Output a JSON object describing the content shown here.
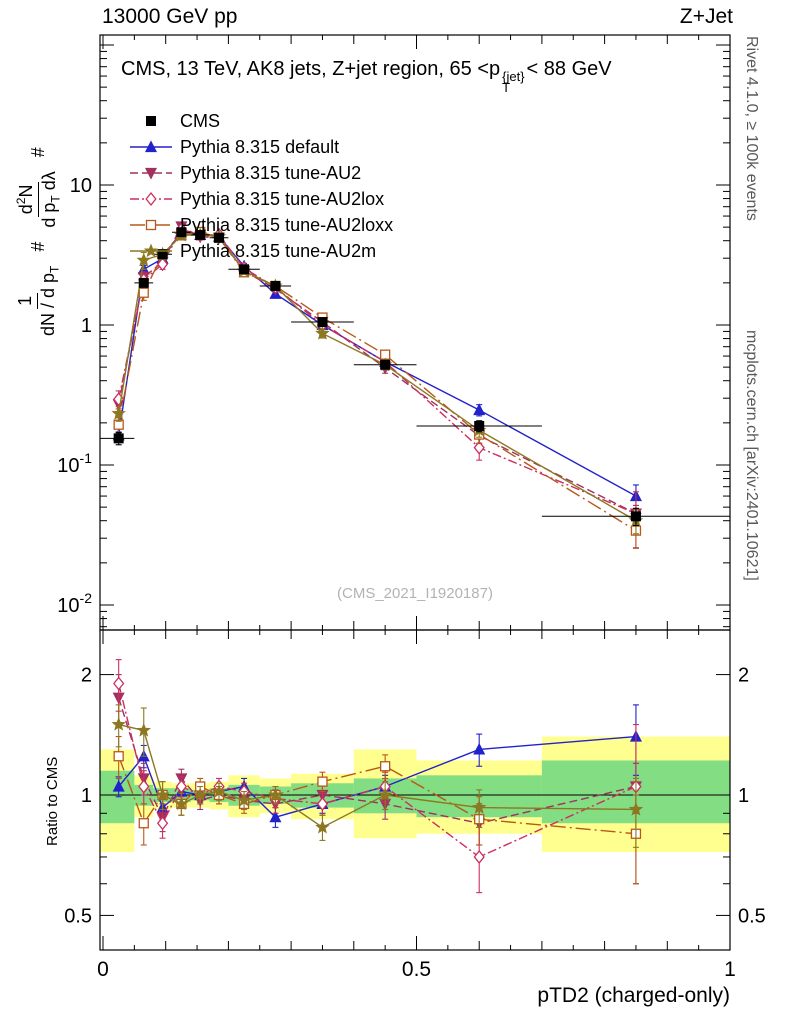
{
  "header": {
    "left": "13000 GeV pp",
    "right": "Z+Jet"
  },
  "title": {
    "pre": "CMS, 13 TeV, AK8 jets, Z+jet region, 65 <p",
    "sup": "{jet}",
    "sub": "T",
    "post": "< 88 GeV"
  },
  "ylabel": {
    "f1_num": "1",
    "f1_den_a": "dN / d p",
    "f1_den_sub": "T",
    "hash1": "#",
    "f2_num_a": "d",
    "f2_num_sup": "2",
    "f2_num_b": "N",
    "f2_den_a": "d p",
    "f2_den_sub": "T",
    "f2_den_b": " dλ",
    "hash2": "#"
  },
  "side_notes": {
    "top_right": "Rivet 4.1.0, ≥ 100k events",
    "bottom_right": "mcplots.cern.ch [arXiv:2401.10621]"
  },
  "chart_data": {
    "type": "line",
    "title_text": "CMS, 13 TeV, AK8 jets, Z+jet region, 65 <pT{jet}< 88 GeV",
    "watermark": "(CMS_2021_I1920187)",
    "xlabel": "pTD2 (charged-only)",
    "x_ticks": [
      0,
      0.5,
      1
    ],
    "x_tick_labels": [
      "0",
      "0.5",
      "1"
    ],
    "x": [
      0.025,
      0.065,
      0.095,
      0.125,
      0.155,
      0.185,
      0.225,
      0.275,
      0.35,
      0.45,
      0.6,
      0.85
    ],
    "bin_edges": [
      0,
      0.05,
      0.08,
      0.11,
      0.14,
      0.17,
      0.2,
      0.25,
      0.3,
      0.4,
      0.5,
      0.7,
      1.0
    ],
    "y_main": {
      "scale": "log",
      "min": 0.0066,
      "max": 117,
      "tick_values": [
        0.01,
        0.1,
        1,
        10
      ],
      "tick_labels": [
        [
          "10",
          "-2"
        ],
        [
          "10",
          "-1"
        ],
        [
          "1",
          ""
        ],
        [
          "10",
          ""
        ]
      ]
    },
    "y_ratio": {
      "scale": "log",
      "min": 0.41,
      "max": 2.59,
      "tick_values": [
        0.5,
        1,
        2
      ],
      "tick_labels": [
        "0.5",
        "1",
        "2"
      ],
      "label": "Ratio to CMS"
    },
    "cms": {
      "label": "CMS",
      "color": "#000000",
      "marker": "square",
      "filled": true,
      "line": "none",
      "values": [
        0.155,
        2.0,
        3.2,
        4.6,
        4.4,
        4.2,
        2.5,
        1.9,
        1.05,
        0.52,
        0.19,
        0.043
      ],
      "rel_err": [
        0.1,
        0.06,
        0.05,
        0.04,
        0.04,
        0.04,
        0.04,
        0.04,
        0.05,
        0.06,
        0.09,
        0.14
      ]
    },
    "series": [
      {
        "label": "Pythia 8.315 default",
        "color": "#2222cc",
        "marker": "triangle-up",
        "filled": true,
        "dash": "",
        "values": [
          0.163,
          2.5,
          2.98,
          4.69,
          4.4,
          4.28,
          2.63,
          1.67,
          1.0,
          0.546,
          0.247,
          0.06
        ],
        "ratio": [
          1.05,
          1.25,
          0.93,
          1.02,
          1.0,
          1.02,
          1.05,
          0.88,
          0.95,
          1.05,
          1.3,
          1.4
        ],
        "ratio_err": [
          0.06,
          0.08,
          0.06,
          0.05,
          0.04,
          0.04,
          0.05,
          0.05,
          0.05,
          0.07,
          0.12,
          0.28
        ]
      },
      {
        "label": "Pythia 8.315 tune-AU2",
        "color": "#a03060",
        "marker": "triangle-down",
        "filled": true,
        "dash": "8,4",
        "values": [
          0.271,
          2.2,
          2.82,
          5.06,
          4.27,
          4.2,
          2.43,
          1.81,
          1.05,
          0.494,
          0.162,
          0.045
        ],
        "ratio": [
          1.75,
          1.1,
          0.88,
          1.1,
          0.97,
          1.0,
          0.97,
          0.95,
          1.0,
          0.95,
          0.85,
          1.05
        ],
        "ratio_err": [
          0.25,
          0.1,
          0.07,
          0.06,
          0.05,
          0.05,
          0.05,
          0.05,
          0.06,
          0.08,
          0.1,
          0.15
        ]
      },
      {
        "label": "Pythia 8.315 tune-AU2lox",
        "color": "#cc2f5e",
        "marker": "diamond",
        "filled": false,
        "dash": "9,3,2,3",
        "values": [
          0.295,
          2.1,
          2.72,
          4.83,
          4.4,
          4.41,
          2.55,
          1.86,
          1.0,
          0.546,
          0.133,
          0.045
        ],
        "ratio": [
          1.9,
          1.05,
          0.85,
          1.05,
          1.0,
          1.05,
          1.02,
          0.98,
          0.95,
          1.05,
          0.7,
          1.05
        ],
        "ratio_err": [
          0.28,
          0.1,
          0.07,
          0.06,
          0.05,
          0.05,
          0.05,
          0.05,
          0.06,
          0.09,
          0.13,
          0.45
        ]
      },
      {
        "label": "Pythia 8.315 tune-AU2loxx",
        "color": "#b85818",
        "marker": "square",
        "filled": false,
        "dash": "15,4,2,4",
        "values": [
          0.194,
          1.7,
          3.2,
          4.37,
          4.62,
          4.2,
          2.38,
          1.9,
          1.13,
          0.614,
          0.165,
          0.034
        ],
        "ratio": [
          1.25,
          0.85,
          1.0,
          0.95,
          1.05,
          1.0,
          0.95,
          1.0,
          1.08,
          1.18,
          0.87,
          0.8
        ],
        "ratio_err": [
          0.15,
          0.1,
          0.08,
          0.06,
          0.05,
          0.05,
          0.05,
          0.05,
          0.06,
          0.08,
          0.12,
          0.2
        ]
      },
      {
        "label": "Pythia 8.315 tune-AU2m",
        "color": "#8c7820",
        "marker": "star",
        "filled": true,
        "dash": "",
        "values": [
          0.233,
          2.9,
          3.2,
          4.37,
          4.4,
          4.28,
          2.43,
          1.9,
          0.87,
          0.52,
          0.177,
          0.04
        ],
        "ratio": [
          1.5,
          1.45,
          1.0,
          0.95,
          1.0,
          1.02,
          0.97,
          1.0,
          0.83,
          1.0,
          0.93,
          0.92
        ],
        "ratio_err": [
          0.18,
          0.2,
          0.08,
          0.06,
          0.05,
          0.05,
          0.05,
          0.05,
          0.06,
          0.08,
          0.1,
          0.18
        ]
      }
    ],
    "bands": {
      "yellow_color": "#ffff8f",
      "green_color": "#83dd83",
      "yellow": [
        [
          0.72,
          1.3
        ],
        [
          0.88,
          1.12
        ],
        [
          0.92,
          1.08
        ],
        [
          0.93,
          1.07
        ],
        [
          0.93,
          1.07
        ],
        [
          0.92,
          1.08
        ],
        [
          0.88,
          1.12
        ],
        [
          0.9,
          1.1
        ],
        [
          0.87,
          1.13
        ],
        [
          0.78,
          1.3
        ],
        [
          0.8,
          1.22
        ],
        [
          0.72,
          1.4
        ]
      ],
      "green": [
        [
          0.85,
          1.15
        ],
        [
          0.94,
          1.06
        ],
        [
          0.96,
          1.04
        ],
        [
          0.96,
          1.04
        ],
        [
          0.97,
          1.03
        ],
        [
          0.96,
          1.04
        ],
        [
          0.94,
          1.06
        ],
        [
          0.95,
          1.05
        ],
        [
          0.93,
          1.07
        ],
        [
          0.9,
          1.1
        ],
        [
          0.88,
          1.12
        ],
        [
          0.85,
          1.22
        ]
      ]
    }
  }
}
